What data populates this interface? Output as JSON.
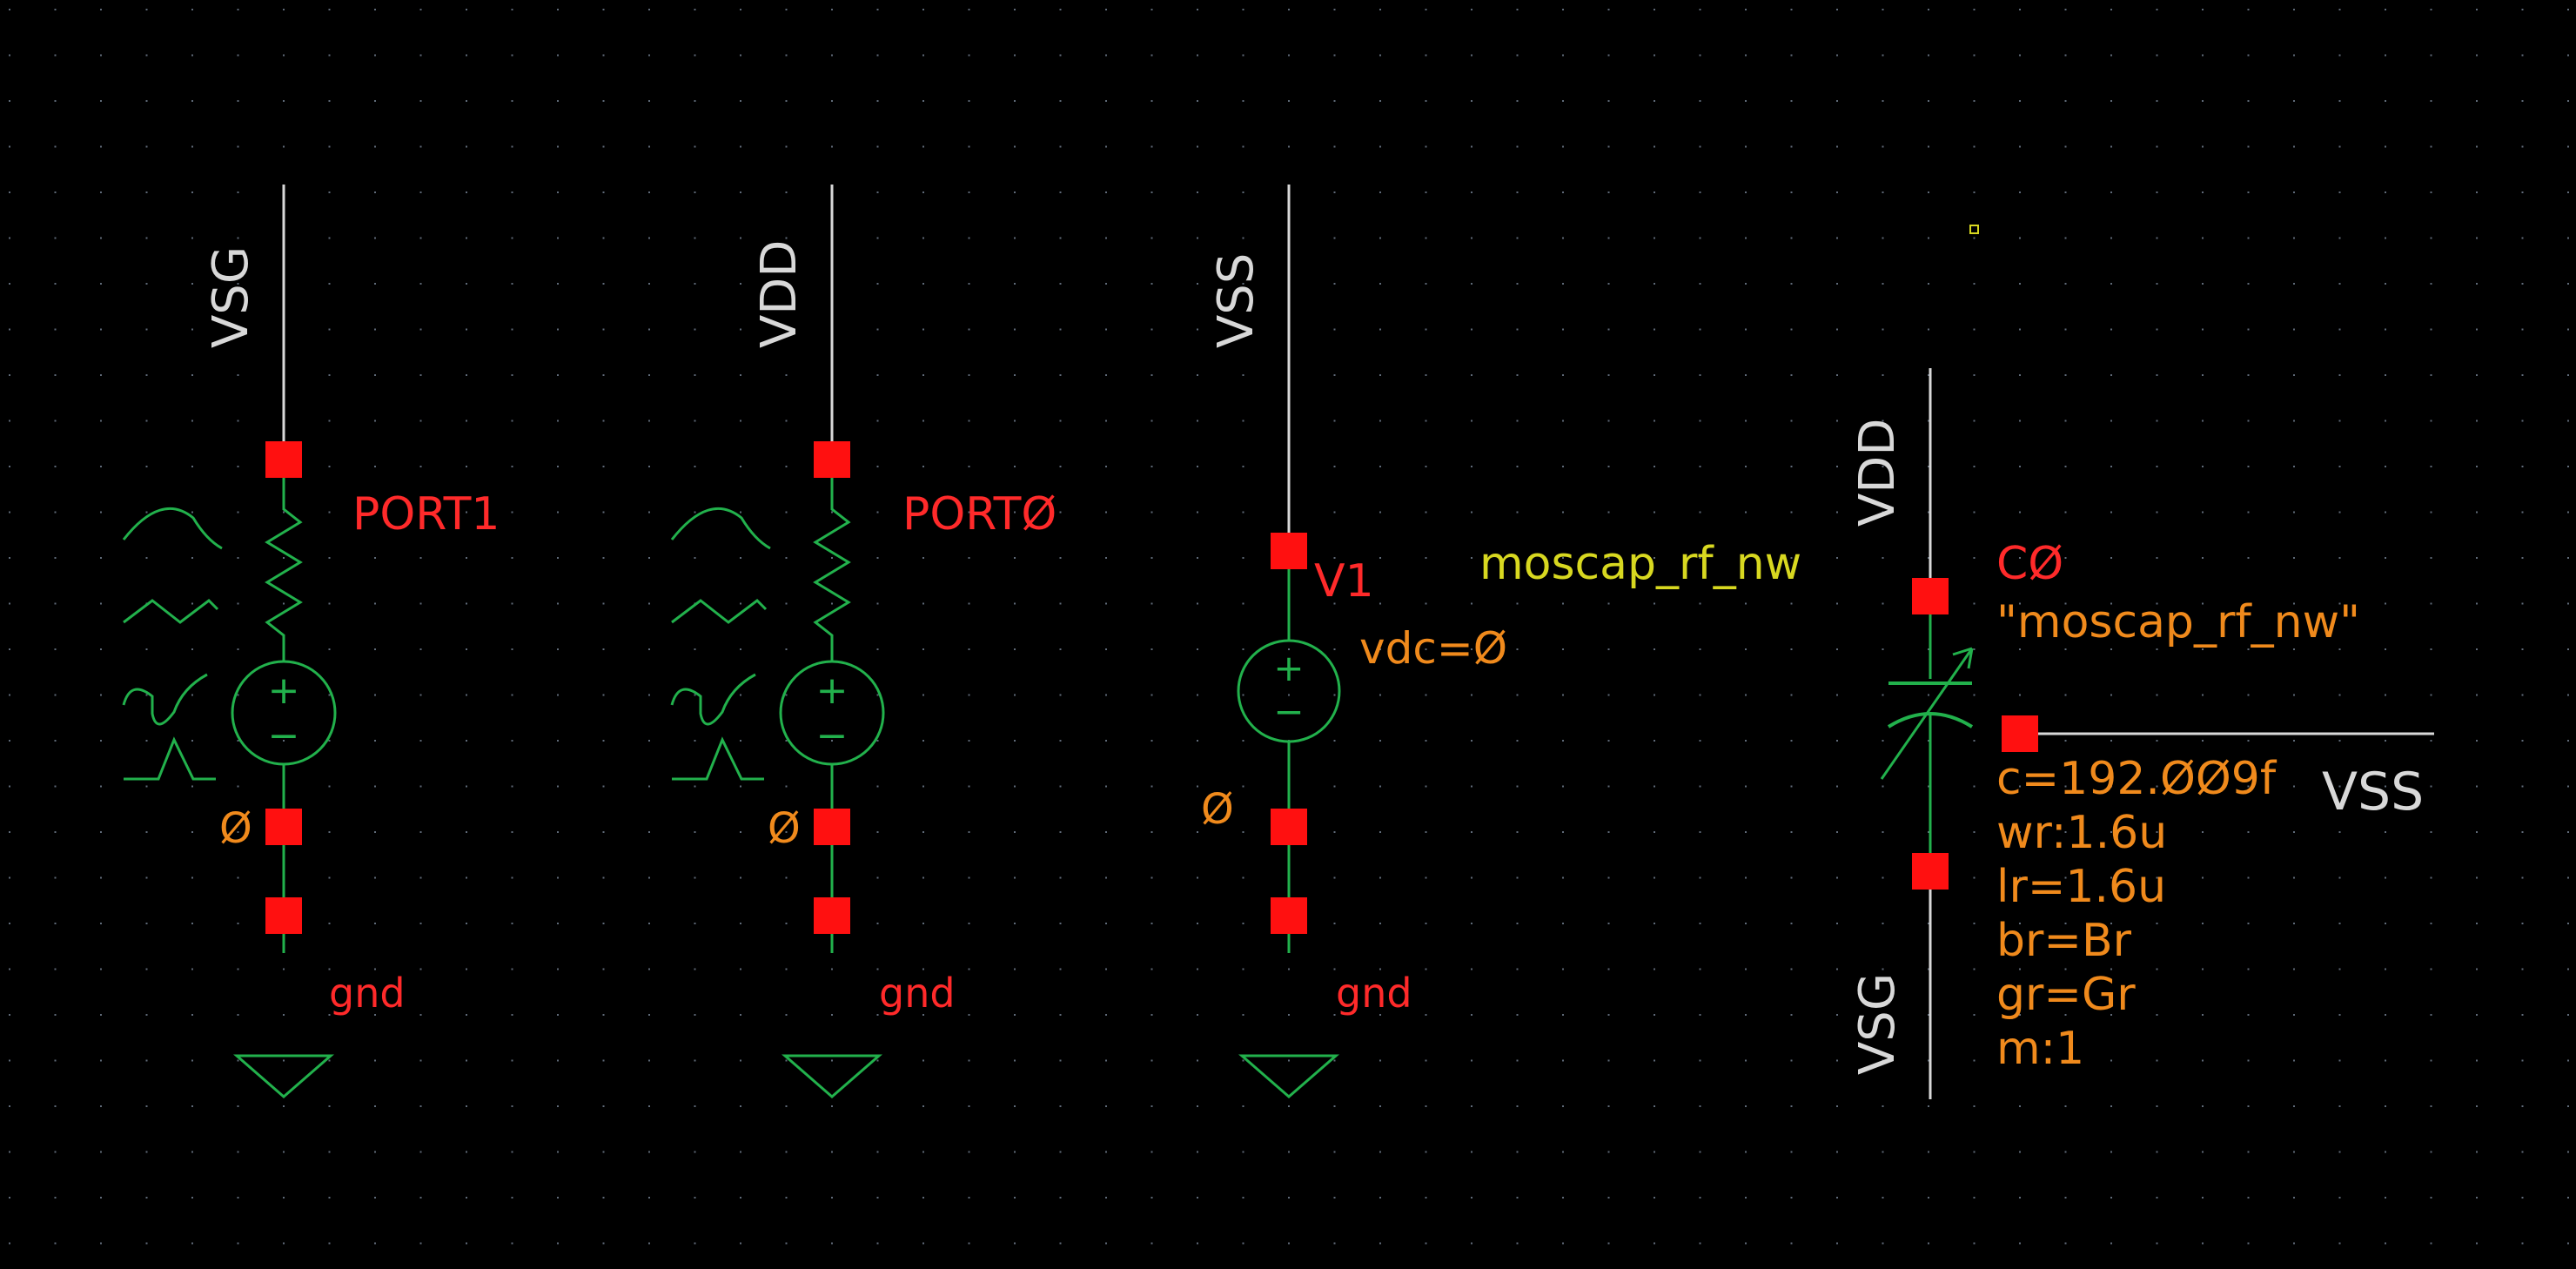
{
  "colors": {
    "background": "#000000",
    "grid": "#5f6a78",
    "wire": "#d8d8d8",
    "symbol": "#22b14c",
    "pin": "#ff1010",
    "inst": "#ff2a2a",
    "param": "#f08a1c",
    "cell": "#d8d820",
    "netlabel": "#d8d8d8"
  },
  "sources": [
    {
      "id": "port1",
      "net_top": "VSG",
      "name": "PORT1",
      "node_label": "Ø",
      "gnd_label": "gnd"
    },
    {
      "id": "port0",
      "net_top": "VDD",
      "name": "PORTØ",
      "node_label": "Ø",
      "gnd_label": "gnd"
    },
    {
      "id": "v1",
      "net_top": "VSS",
      "name": "V1",
      "param": "vdc=Ø",
      "node_label": "Ø",
      "gnd_label": "gnd"
    }
  ],
  "moscap": {
    "cell": "moscap_rf_nw",
    "inst": "CØ",
    "model": "\"moscap_rf_nw\"",
    "net_top": "VDD",
    "net_bottom": "VSG",
    "net_bulk": "VSS",
    "params": [
      "c=192.ØØ9f",
      "wr:1.6u",
      "lr=1.6u",
      "br=Br",
      "gr=Gr",
      "m:1"
    ]
  }
}
